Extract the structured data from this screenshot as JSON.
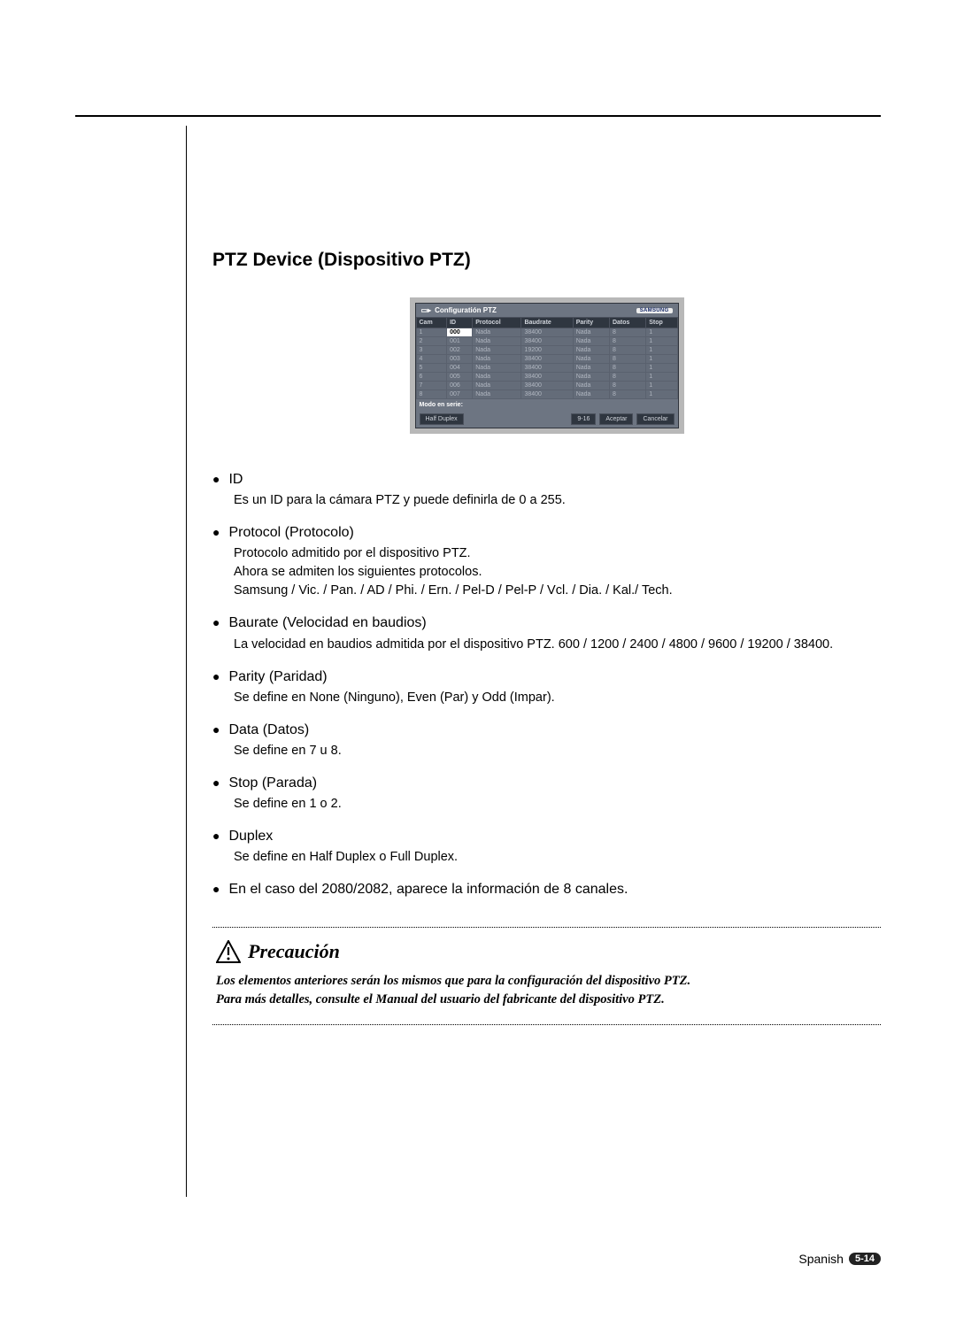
{
  "heading": "PTZ Device (Dispositivo PTZ)",
  "screenshot": {
    "title": "Configuratión PTZ",
    "logo": "SAMSUNG",
    "columns": [
      "Cam",
      "ID",
      "Protocol",
      "Baudrate",
      "Parity",
      "Datos",
      "Stop"
    ],
    "rows": [
      {
        "cam": "1",
        "id": "000",
        "id_hi": true,
        "protocol": "Nada",
        "baud": "38400",
        "parity": "Nada",
        "data": "8",
        "stop": "1"
      },
      {
        "cam": "2",
        "id": "001",
        "protocol": "Nada",
        "baud": "38400",
        "parity": "Nada",
        "data": "8",
        "stop": "1"
      },
      {
        "cam": "3",
        "id": "002",
        "protocol": "Nada",
        "baud": "19200",
        "parity": "Nada",
        "data": "8",
        "stop": "1"
      },
      {
        "cam": "4",
        "id": "003",
        "protocol": "Nada",
        "baud": "38400",
        "parity": "Nada",
        "data": "8",
        "stop": "1"
      },
      {
        "cam": "5",
        "id": "004",
        "protocol": "Nada",
        "baud": "38400",
        "parity": "Nada",
        "data": "8",
        "stop": "1"
      },
      {
        "cam": "6",
        "id": "005",
        "protocol": "Nada",
        "baud": "38400",
        "parity": "Nada",
        "data": "8",
        "stop": "1"
      },
      {
        "cam": "7",
        "id": "006",
        "protocol": "Nada",
        "baud": "38400",
        "parity": "Nada",
        "data": "8",
        "stop": "1"
      },
      {
        "cam": "8",
        "id": "007",
        "protocol": "Nada",
        "baud": "38400",
        "parity": "Nada",
        "data": "8",
        "stop": "1"
      }
    ],
    "serial_mode_label": "Modo en serie:",
    "duplex_btn": "Half Duplex",
    "page_btn": "9-16",
    "ok_btn": "Aceptar",
    "cancel_btn": "Cancelar"
  },
  "items": [
    {
      "term": "ID",
      "desc": "Es un ID para la cámara PTZ y puede definirla de 0 a 255."
    },
    {
      "term": "Protocol (Protocolo)",
      "desc": "Protocolo admitido por el dispositivo PTZ.\nAhora se admiten los siguientes protocolos.\nSamsung / Vic. / Pan. / AD / Phi. / Ern. / Pel-D / Pel-P / Vcl. / Dia. / Kal./ Tech."
    },
    {
      "term": "Baurate (Velocidad en baudios)",
      "desc": "La velocidad en baudios admitida por el dispositivo PTZ. 600 / 1200 / 2400 / 4800 / 9600 / 19200 / 38400."
    },
    {
      "term": "Parity (Paridad)",
      "desc": "Se define en None (Ninguno), Even (Par) y Odd (Impar)."
    },
    {
      "term": "Data (Datos)",
      "desc": "Se define en 7 u 8."
    },
    {
      "term": "Stop (Parada)",
      "desc": "Se define en 1 o 2."
    },
    {
      "term": "Duplex",
      "desc": "Se define en Half Duplex o Full Duplex."
    },
    {
      "term": "En el caso del 2080/2082, aparece la información de 8 canales.",
      "desc": ""
    }
  ],
  "caution": {
    "title": "Precaución",
    "line1": "Los elementos anteriores serán los mismos que para la configuración del dispositivo PTZ.",
    "line2": "Para más detalles, consulte el Manual del usuario del fabricante del dispositivo PTZ."
  },
  "footer": {
    "lang": "Spanish",
    "badge": "5-14"
  }
}
